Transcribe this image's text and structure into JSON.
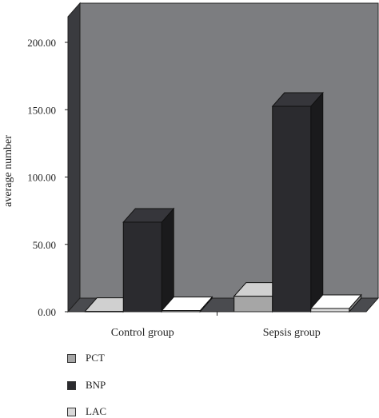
{
  "chart_data": {
    "type": "bar",
    "ylabel": "average number",
    "xlabel": "",
    "ylim": [
      0,
      200
    ],
    "yticks": [
      "0.00",
      "50.00",
      "100.00",
      "150.00",
      "200.00"
    ],
    "categories": [
      "Control group",
      "Sepsis group"
    ],
    "series": [
      {
        "name": "PCT",
        "values": [
          0.2,
          11.5
        ],
        "color": "#a6a6a6"
      },
      {
        "name": "BNP",
        "values": [
          66.5,
          152.5
        ],
        "color": "#2b2b2f"
      },
      {
        "name": "LAC",
        "values": [
          0.8,
          2.4
        ],
        "color": "#d9d9d9"
      }
    ],
    "grid": false,
    "legend_position": "bottom-left",
    "style": "3d",
    "background_color": "#7c7d80"
  }
}
